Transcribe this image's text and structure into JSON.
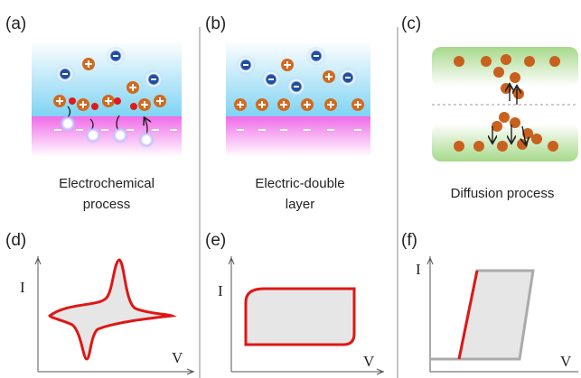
{
  "panels": [
    {
      "label": "(a)",
      "caption": [
        "Electrochemical",
        "process"
      ]
    },
    {
      "label": "(b)",
      "caption": [
        "Electric-double",
        "layer"
      ]
    },
    {
      "label": "(c)",
      "caption": [
        "Diffusion process"
      ]
    }
  ],
  "plots": [
    {
      "label": "(d)",
      "y_axis": "I",
      "x_axis": "V"
    },
    {
      "label": "(e)",
      "y_axis": "I",
      "x_axis": "V"
    },
    {
      "label": "(f)",
      "y_axis": "I",
      "x_axis": "V"
    }
  ]
}
